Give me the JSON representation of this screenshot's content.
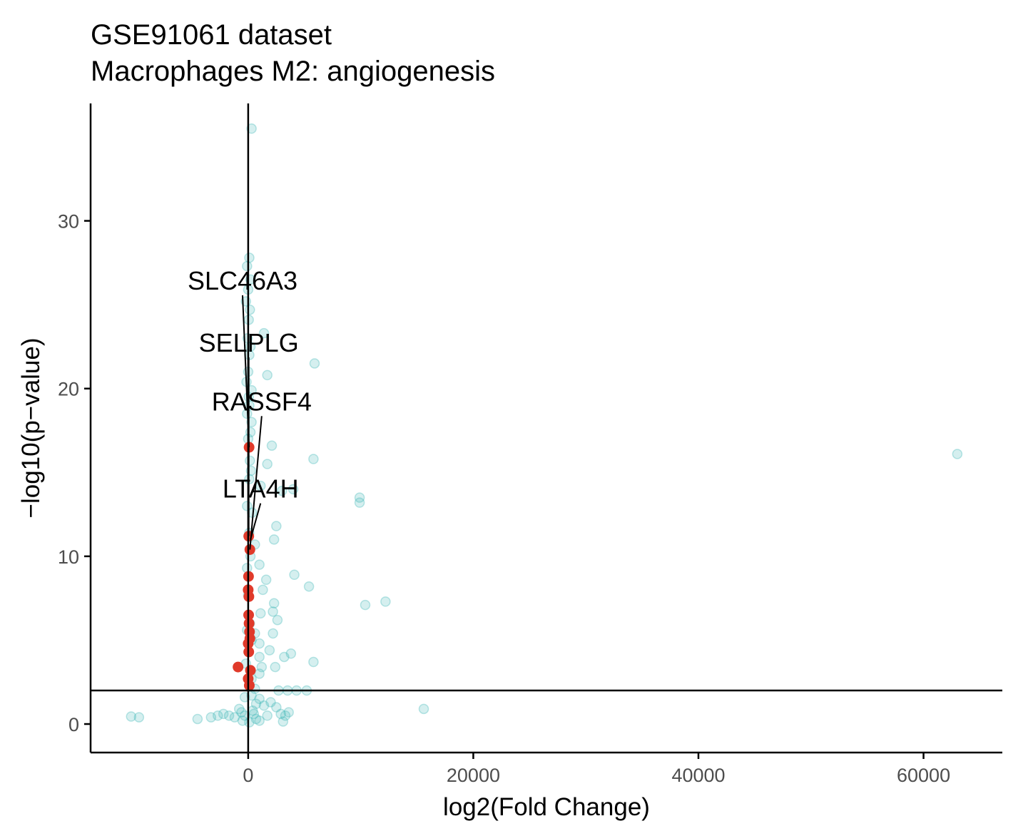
{
  "chart_data": {
    "type": "scatter",
    "title": "GSE91061 dataset",
    "subtitle": "Macrophages M2: angiogenesis",
    "xlabel": "log2(Fold Change)",
    "ylabel": "−log10(p−value)",
    "xlim": [
      -14000,
      67000
    ],
    "ylim": [
      -1.7,
      37
    ],
    "x_ticks": [
      0,
      20000,
      40000,
      60000
    ],
    "y_ticks": [
      0,
      10,
      20,
      30
    ],
    "grid": false,
    "legend": "none",
    "reference_lines": {
      "vertical_x": 0,
      "horizontal_y": 2
    },
    "colors": {
      "background_genes": "#40b8b8",
      "pathway_genes": "#e03a2a",
      "axes": "#000000"
    },
    "series": [
      {
        "role": "background",
        "points": [
          [
            300,
            35.5
          ],
          [
            100,
            27.8
          ],
          [
            -100,
            27.3
          ],
          [
            200,
            26.5
          ],
          [
            0,
            25.9
          ],
          [
            -200,
            25.2
          ],
          [
            150,
            24.7
          ],
          [
            50,
            24.1
          ],
          [
            1400,
            23.3
          ],
          [
            -50,
            23.0
          ],
          [
            200,
            22.5
          ],
          [
            100,
            22.0
          ],
          [
            5900,
            21.5
          ],
          [
            0,
            21.0
          ],
          [
            1700,
            20.8
          ],
          [
            -150,
            20.4
          ],
          [
            300,
            19.9
          ],
          [
            50,
            19.5
          ],
          [
            100,
            19.0
          ],
          [
            -100,
            18.5
          ],
          [
            300,
            18.0
          ],
          [
            200,
            17.4
          ],
          [
            0,
            17.0
          ],
          [
            2100,
            16.6
          ],
          [
            5800,
            15.8
          ],
          [
            150,
            15.7
          ],
          [
            1700,
            15.5
          ],
          [
            250,
            15.1
          ],
          [
            100,
            14.6
          ],
          [
            1100,
            14.2
          ],
          [
            3000,
            13.9
          ],
          [
            4000,
            14.0
          ],
          [
            9900,
            13.5
          ],
          [
            9900,
            13.2
          ],
          [
            -100,
            13.0
          ],
          [
            350,
            12.6
          ],
          [
            2500,
            11.8
          ],
          [
            100,
            11.4
          ],
          [
            2300,
            11.0
          ],
          [
            600,
            10.7
          ],
          [
            200,
            10.0
          ],
          [
            1000,
            9.5
          ],
          [
            -100,
            9.3
          ],
          [
            4100,
            8.9
          ],
          [
            1600,
            8.6
          ],
          [
            5400,
            8.2
          ],
          [
            1300,
            8.0
          ],
          [
            0,
            7.7
          ],
          [
            12200,
            7.3
          ],
          [
            10400,
            7.1
          ],
          [
            2300,
            7.2
          ],
          [
            2200,
            6.7
          ],
          [
            1100,
            6.6
          ],
          [
            2600,
            6.2
          ],
          [
            150,
            6.0
          ],
          [
            -100,
            5.6
          ],
          [
            600,
            5.4
          ],
          [
            2200,
            5.4
          ],
          [
            300,
            5.0
          ],
          [
            1000,
            4.8
          ],
          [
            1900,
            4.4
          ],
          [
            3800,
            4.2
          ],
          [
            3200,
            4.0
          ],
          [
            1000,
            4.0
          ],
          [
            5800,
            3.7
          ],
          [
            -200,
            3.6
          ],
          [
            1200,
            3.4
          ],
          [
            2400,
            3.4
          ],
          [
            1000,
            3.0
          ],
          [
            300,
            2.7
          ],
          [
            3500,
            2.0
          ],
          [
            2700,
            2.0
          ],
          [
            5200,
            2.0
          ],
          [
            4300,
            2.0
          ],
          [
            600,
            2.1
          ],
          [
            300,
            1.7
          ],
          [
            -300,
            1.6
          ],
          [
            1000,
            1.5
          ],
          [
            2000,
            1.3
          ],
          [
            700,
            1.2
          ],
          [
            1400,
            1.1
          ],
          [
            2500,
            1.0
          ],
          [
            -800,
            0.9
          ],
          [
            15600,
            0.9
          ],
          [
            3600,
            0.7
          ],
          [
            2900,
            0.6
          ],
          [
            1700,
            0.5
          ],
          [
            3300,
            0.5
          ],
          [
            700,
            0.3
          ],
          [
            -2200,
            0.6
          ],
          [
            -1700,
            0.5
          ],
          [
            -1200,
            0.4
          ],
          [
            -2700,
            0.5
          ],
          [
            -3300,
            0.4
          ],
          [
            -4500,
            0.3
          ],
          [
            -10400,
            0.45
          ],
          [
            -9700,
            0.4
          ],
          [
            -500,
            0.2
          ],
          [
            100,
            0.1
          ],
          [
            1000,
            0.2
          ],
          [
            3100,
            0.15
          ],
          [
            -600,
            0.7
          ],
          [
            400,
            0.8
          ],
          [
            -300,
            0.5
          ],
          [
            500,
            0.6
          ],
          [
            63000,
            16.1
          ]
        ]
      },
      {
        "role": "pathway",
        "points": [
          [
            80,
            16.5
          ],
          [
            50,
            11.2
          ],
          [
            150,
            10.4
          ],
          [
            30,
            8.8
          ],
          [
            0,
            8.0
          ],
          [
            60,
            7.6
          ],
          [
            40,
            6.5
          ],
          [
            80,
            6.0
          ],
          [
            120,
            5.5
          ],
          [
            150,
            5.1
          ],
          [
            0,
            4.8
          ],
          [
            50,
            4.3
          ],
          [
            -900,
            3.4
          ],
          [
            200,
            3.2
          ],
          [
            0,
            2.7
          ],
          [
            100,
            2.3
          ]
        ]
      }
    ],
    "annotations": [
      {
        "label": "SLC46A3",
        "x": 80,
        "y": 16.5,
        "label_x": -500,
        "label_y": 25.9
      },
      {
        "label": "SELPLG",
        "x": 50,
        "y": 11.2,
        "label_x": 50,
        "label_y": 22.2
      },
      {
        "label": "RASSF4",
        "x": 150,
        "y": 10.4,
        "label_x": 1200,
        "label_y": 18.7
      },
      {
        "label": "LTA4H",
        "x": 200,
        "y": 11.0,
        "label_x": 1100,
        "label_y": 13.5
      }
    ]
  }
}
